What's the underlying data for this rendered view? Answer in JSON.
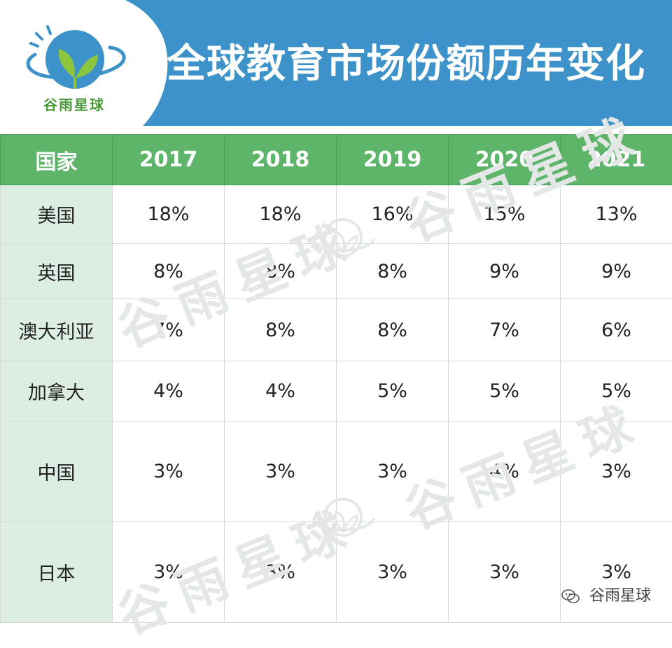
{
  "header": {
    "title": "全球教育市场份额历年变化",
    "logo_text": "谷雨星球",
    "background_color": "#3d93c9"
  },
  "table": {
    "header_color": "#5eb56a",
    "country_column_color": "#dcede2",
    "columns": [
      "国家",
      "2017",
      "2018",
      "2019",
      "2020",
      "2021"
    ],
    "rows": [
      {
        "country": "美国",
        "values": [
          "18%",
          "18%",
          "16%",
          "15%",
          "13%"
        ]
      },
      {
        "country": "英国",
        "values": [
          "8%",
          "8%",
          "8%",
          "9%",
          "9%"
        ]
      },
      {
        "country": "澳大利亚",
        "values": [
          "7%",
          "8%",
          "8%",
          "7%",
          "6%"
        ]
      },
      {
        "country": "加拿大",
        "values": [
          "4%",
          "4%",
          "5%",
          "5%",
          "5%"
        ]
      },
      {
        "country": "中国",
        "values": [
          "3%",
          "3%",
          "3%",
          "4%",
          "3%"
        ]
      },
      {
        "country": "日本",
        "values": [
          "3%",
          "3%",
          "3%",
          "3%",
          "3%"
        ]
      }
    ]
  },
  "watermark": {
    "text": "谷雨星球"
  },
  "corner_mark": {
    "icon": "wechat-icon",
    "text": "谷雨星球"
  }
}
